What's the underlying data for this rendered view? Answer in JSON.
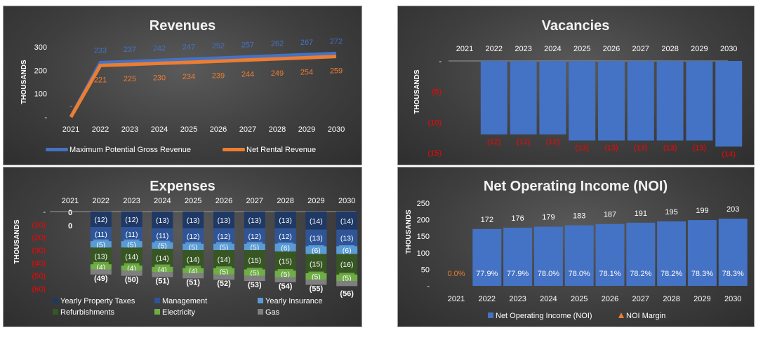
{
  "colors": {
    "gross": "#4472c4",
    "net": "#ed7d31",
    "bar_blue": "#4472c4",
    "neg_red": "#ff0000",
    "property_taxes": "#1f3864",
    "management": "#2f5597",
    "insurance": "#5b9bd5",
    "refurbishments": "#375623",
    "electricity": "#70ad47",
    "gas": "#7f7f7f"
  },
  "chart_data": [
    {
      "id": "revenues",
      "type": "line",
      "title": "Revenues",
      "ylabel": "THOUSANDS",
      "ylim": [
        0,
        300
      ],
      "yticks": [
        "-",
        "100",
        "200",
        "300"
      ],
      "x": [
        "2021",
        "2022",
        "2023",
        "2024",
        "2025",
        "2026",
        "2027",
        "2028",
        "2029",
        "2030"
      ],
      "series": [
        {
          "name": "Maximum Potential Gross Revenue",
          "values": [
            0,
            233,
            237,
            242,
            247,
            252,
            257,
            262,
            267,
            272
          ],
          "labels": [
            "-",
            "233",
            "237",
            "242",
            "247",
            "252",
            "257",
            "262",
            "267",
            "272"
          ]
        },
        {
          "name": "Net Rental Revenue",
          "values": [
            0,
            221,
            225,
            230,
            234,
            239,
            244,
            249,
            254,
            259
          ],
          "labels": [
            "-",
            "221",
            "225",
            "230",
            "234",
            "239",
            "244",
            "249",
            "254",
            "259"
          ]
        }
      ],
      "legend": "bottom"
    },
    {
      "id": "vacancies",
      "type": "bar",
      "title": "Vacancies",
      "ylabel": "THOUSANDS",
      "ylim": [
        -15,
        0
      ],
      "yticks": [
        "-",
        "(5)",
        "(10)",
        "(15)"
      ],
      "categories": [
        "2021",
        "2022",
        "2023",
        "2024",
        "2025",
        "2026",
        "2027",
        "2028",
        "2029",
        "2030"
      ],
      "values": [
        0,
        -12,
        -12,
        -12,
        -13,
        -13,
        -13,
        -13,
        -13,
        -14
      ],
      "labels": [
        "",
        "(12)",
        "(12)",
        "(12)",
        "(13)",
        "(13)",
        "(13)",
        "(13)",
        "(13)",
        "(14)"
      ]
    },
    {
      "id": "expenses",
      "type": "bar",
      "stacked": true,
      "title": "Expenses",
      "ylabel": "THOUSANDS",
      "ylim": [
        -60,
        0
      ],
      "yticks": [
        "-",
        "(10)",
        "(20)",
        "(30)",
        "(40)",
        "(50)",
        "(60)"
      ],
      "categories": [
        "2021",
        "2022",
        "2023",
        "2024",
        "2025",
        "2026",
        "2027",
        "2028",
        "2029",
        "2030"
      ],
      "first_labels": [
        "0",
        "0"
      ],
      "series": [
        {
          "name": "Yearly Property Taxes",
          "values": [
            0,
            -12,
            -12,
            -13,
            -13,
            -13,
            -13,
            -13,
            -14,
            -14
          ],
          "labels": [
            "",
            "(12)",
            "(12)",
            "(13)",
            "(13)",
            "(13)",
            "(13)",
            "(13)",
            "(14)",
            "(14)"
          ]
        },
        {
          "name": "Management",
          "values": [
            0,
            -11,
            -11,
            -11,
            -12,
            -12,
            -12,
            -12,
            -13,
            -13
          ],
          "labels": [
            "",
            "(11)",
            "(11)",
            "(11)",
            "(12)",
            "(12)",
            "(12)",
            "(12)",
            "(13)",
            "(13)"
          ]
        },
        {
          "name": "Yearly Insurance",
          "values": [
            0,
            -5,
            -5,
            -5,
            -5,
            -5,
            -5,
            -6,
            -6,
            -6
          ],
          "labels": [
            "",
            "(5)",
            "(5)",
            "(5)",
            "(5)",
            "(5)",
            "(5)",
            "(6)",
            "(6)",
            "(6)"
          ]
        },
        {
          "name": "Refurbishments",
          "values": [
            0,
            -13,
            -14,
            -14,
            -14,
            -14,
            -15,
            -15,
            -15,
            -16
          ],
          "labels": [
            "",
            "(13)",
            "(14)",
            "(14)",
            "(14)",
            "(14)",
            "(15)",
            "(15)",
            "(15)",
            "(16)"
          ]
        },
        {
          "name": "Electricity",
          "values": [
            0,
            -4,
            -4,
            -4,
            -4,
            -5,
            -5,
            -5,
            -5,
            -5
          ],
          "labels": [
            "",
            "(4)",
            "(4)",
            "(4)",
            "(4)",
            "(5)",
            "(5)",
            "(5)",
            "(5)",
            "(5)"
          ]
        },
        {
          "name": "Gas",
          "values": [
            0,
            -4,
            -4,
            -4,
            -4,
            -4,
            -4,
            -4,
            -4,
            -4
          ],
          "labels": [
            "",
            "",
            "",
            "",
            "",
            "",
            "",
            "",
            "",
            ""
          ]
        }
      ],
      "totals": [
        "",
        "(49)",
        "(50)",
        "(51)",
        "(51)",
        "(52)",
        "(53)",
        "(54)",
        "(55)",
        "(56)"
      ],
      "legend": "bottom"
    },
    {
      "id": "noi",
      "type": "bar",
      "title": "Net Operating Income (NOI)",
      "ylabel": "THOUSANDS",
      "ylim": [
        0,
        250
      ],
      "yticks": [
        "-",
        "50",
        "100",
        "150",
        "200",
        "250"
      ],
      "categories": [
        "2021",
        "2022",
        "2023",
        "2024",
        "2025",
        "2026",
        "2027",
        "2028",
        "2029",
        "2030"
      ],
      "series": [
        {
          "name": "Net Operating Income (NOI)",
          "values": [
            0,
            172,
            176,
            179,
            183,
            187,
            191,
            195,
            199,
            203
          ],
          "labels": [
            "",
            "172",
            "176",
            "179",
            "183",
            "187",
            "191",
            "195",
            "199",
            "203"
          ]
        },
        {
          "name": "NOI Margin",
          "values": [
            0.0,
            77.9,
            77.9,
            78.0,
            78.0,
            78.1,
            78.2,
            78.2,
            78.3,
            78.3
          ],
          "labels": [
            "0.0%",
            "77.9%",
            "77.9%",
            "78.0%",
            "78.0%",
            "78.1%",
            "78.2%",
            "78.2%",
            "78.3%",
            "78.3%"
          ]
        }
      ],
      "legend": "bottom"
    }
  ]
}
